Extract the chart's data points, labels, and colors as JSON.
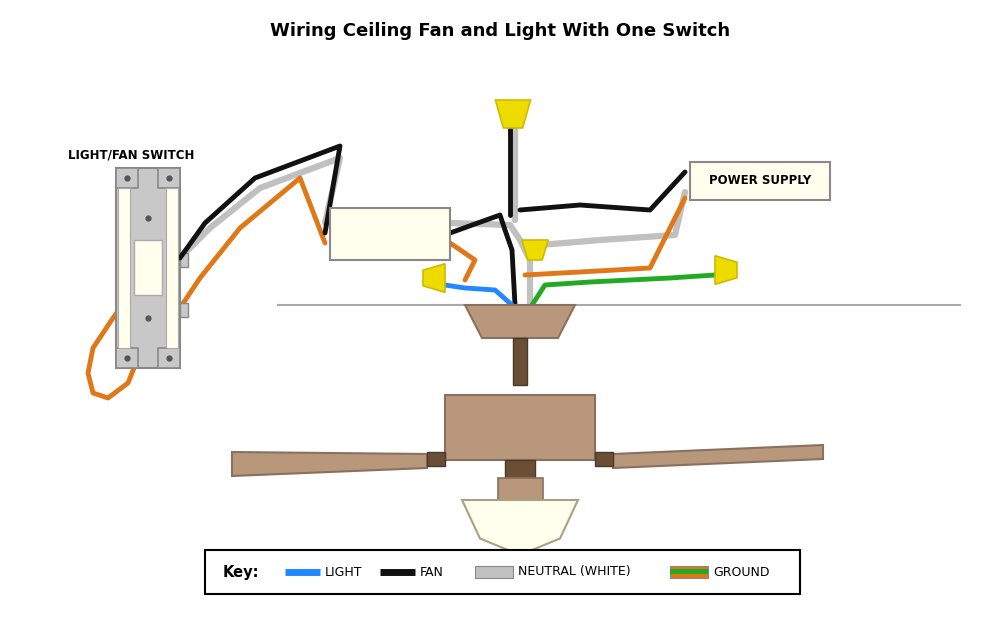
{
  "title": "Wiring Ceiling Fan and Light With One Switch",
  "title_fontsize": 13,
  "bg_color": "#ffffff",
  "switch_color": "#c8c8c8",
  "switch_accent": "#ffffee",
  "fan_body_color": "#b8977a",
  "fan_dark": "#6b4f35",
  "junction_box_color": "#ffffee",
  "wire_black": "#111111",
  "wire_gray": "#c0c0c0",
  "wire_orange": "#e07818",
  "wire_blue": "#2288ff",
  "wire_green": "#22aa22",
  "arrow_color": "#eedc00",
  "arrow_edge": "#ccbb00",
  "power_supply_box": "#ffffee",
  "ceiling_line_color": "#aaaaaa",
  "key_labels": [
    "LIGHT",
    "FAN",
    "NEUTRAL (WHITE)",
    "GROUND"
  ],
  "key_swatch_colors": [
    "#2288ff",
    "#111111",
    "#c0c0c0",
    "#e07818"
  ],
  "key_green": "#22aa22"
}
